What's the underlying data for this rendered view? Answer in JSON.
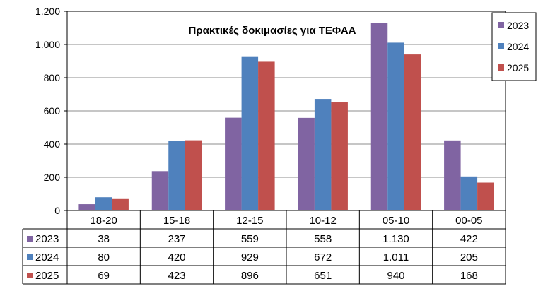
{
  "chart_data": {
    "type": "bar",
    "title": "Πρακτικές δοκιμασίες για ΤΕΦΑΑ",
    "categories": [
      "18-20",
      "15-18",
      "12-15",
      "10-12",
      "05-10",
      "00-05"
    ],
    "series": [
      {
        "name": "2023",
        "color": "#8064a2",
        "values": [
          38,
          237,
          559,
          558,
          1130,
          422
        ],
        "labels": [
          "38",
          "237",
          "559",
          "558",
          "1.130",
          "422"
        ]
      },
      {
        "name": "2024",
        "color": "#4f81bd",
        "values": [
          80,
          420,
          929,
          672,
          1011,
          205
        ],
        "labels": [
          "80",
          "420",
          "929",
          "672",
          "1.011",
          "205"
        ]
      },
      {
        "name": "2025",
        "color": "#c0504d",
        "values": [
          69,
          423,
          896,
          651,
          940,
          168
        ],
        "labels": [
          "69",
          "423",
          "896",
          "651",
          "940",
          "168"
        ]
      }
    ],
    "ylim": [
      0,
      1200
    ],
    "yticks": [
      0,
      200,
      400,
      600,
      800,
      1000,
      1200
    ],
    "ytick_labels": [
      "0",
      "200",
      "400",
      "600",
      "800",
      "1.000",
      "1.200"
    ],
    "grid": true,
    "legend_position": "top-right",
    "data_table": true
  }
}
